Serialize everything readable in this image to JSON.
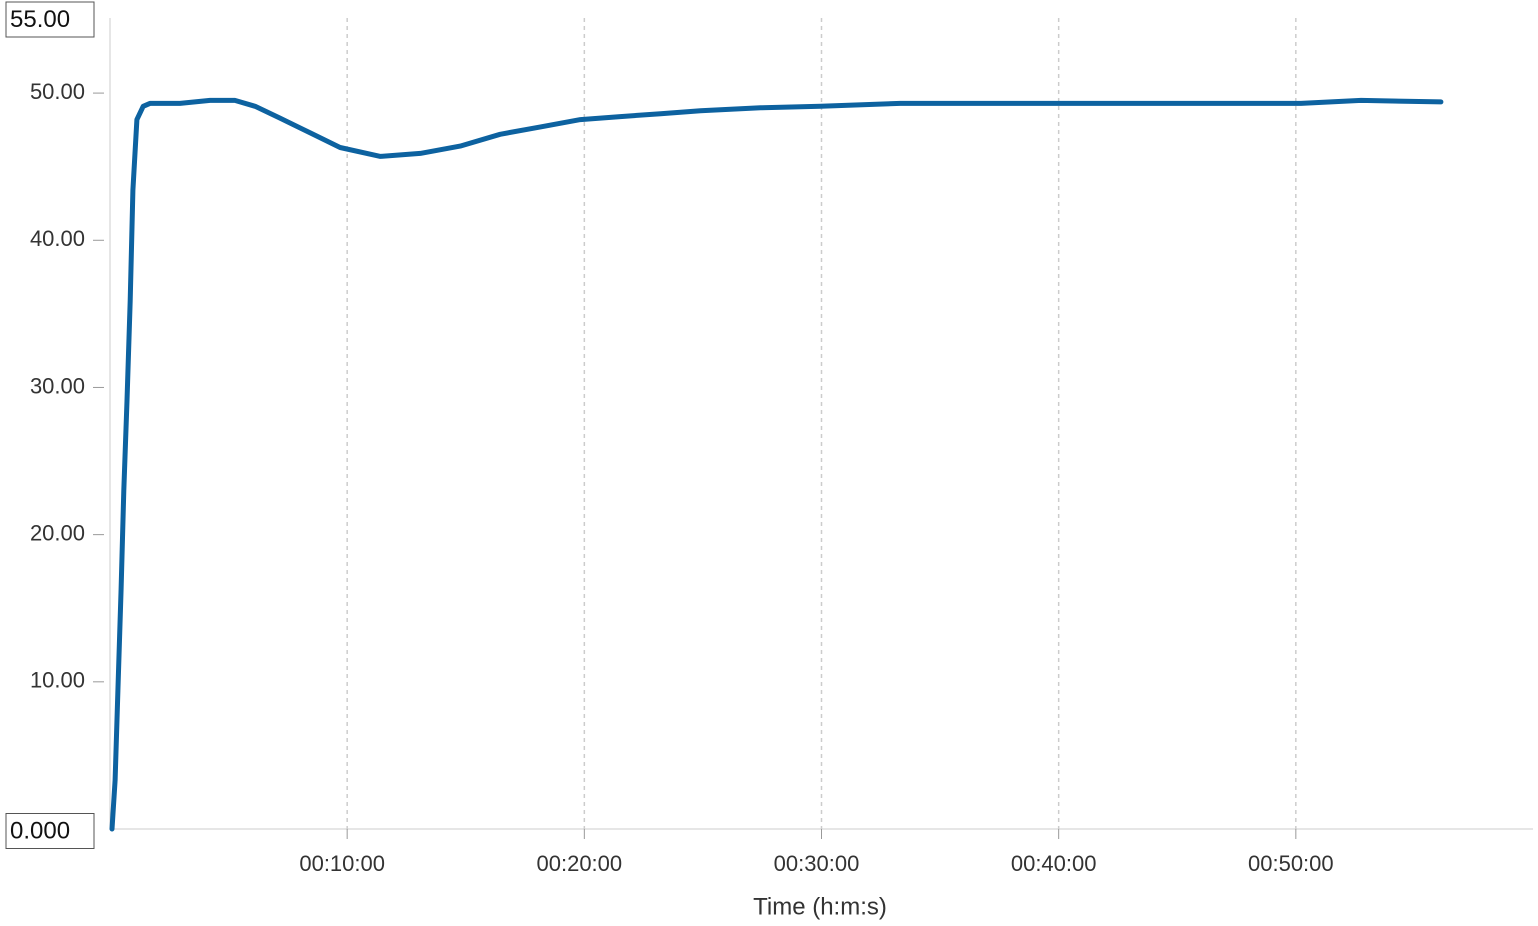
{
  "chart_data": {
    "type": "line",
    "x_label": "Time (h:m:s)",
    "x": [
      5,
      13,
      20,
      28,
      35,
      43,
      51,
      58,
      68,
      84,
      101,
      177,
      253,
      316,
      367,
      430,
      506,
      582,
      684,
      785,
      886,
      987,
      1089,
      1190,
      1291,
      1393,
      1494,
      1646,
      1798,
      1999,
      2253,
      2507,
      2760,
      3013,
      3165,
      3367
    ],
    "values": [
      0,
      3.3,
      9.4,
      16.3,
      23,
      29.1,
      35.9,
      43.4,
      48.2,
      49.1,
      49.3,
      49.3,
      49.5,
      49.5,
      49.1,
      48.3,
      47.3,
      46.3,
      45.7,
      45.9,
      46.4,
      47.2,
      47.7,
      48.2,
      48.4,
      48.6,
      48.8,
      49.0,
      49.1,
      49.3,
      49.3,
      49.3,
      49.3,
      49.3,
      49.5,
      49.4
    ],
    "color": "#0d62a0",
    "xlim": [
      0,
      3600
    ],
    "xticks": [
      {
        "value": 600,
        "label": "00:10:00"
      },
      {
        "value": 1200,
        "label": "00:20:00"
      },
      {
        "value": 1800,
        "label": "00:30:00"
      },
      {
        "value": 2400,
        "label": "00:40:00"
      },
      {
        "value": 3000,
        "label": "00:50:00"
      }
    ],
    "ylim": [
      0,
      55
    ],
    "yticks": [
      {
        "value": 0,
        "label": "0.000"
      },
      {
        "value": 10,
        "label": "10.00"
      },
      {
        "value": 20,
        "label": "20.00"
      },
      {
        "value": 30,
        "label": "30.00"
      },
      {
        "value": 40,
        "label": "40.00"
      },
      {
        "value": 50,
        "label": "50.00"
      },
      {
        "value": 55,
        "label": "55.00"
      }
    ],
    "grid": "x"
  }
}
